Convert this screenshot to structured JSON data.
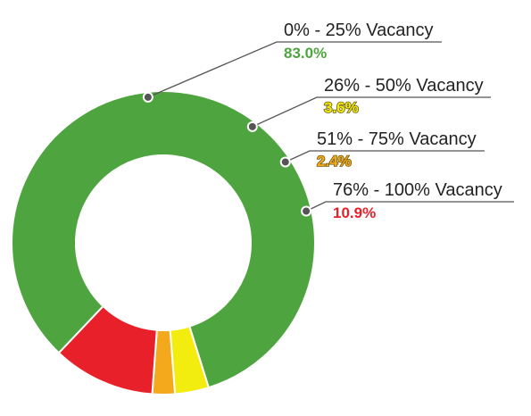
{
  "chart_data": {
    "type": "pie",
    "donut": true,
    "categories": [
      "0% - 25% Vacancy",
      "26% - 50% Vacancy",
      "51% - 75% Vacancy",
      "76% - 100% Vacancy"
    ],
    "values": [
      83.0,
      3.6,
      2.4,
      10.9
    ],
    "value_labels": [
      "83.0%",
      "3.6%",
      "2.4%",
      "10.9%"
    ],
    "colors": [
      "#4ea53f",
      "#f2ed0f",
      "#f4a81b",
      "#e8202a"
    ],
    "legend": "none"
  }
}
